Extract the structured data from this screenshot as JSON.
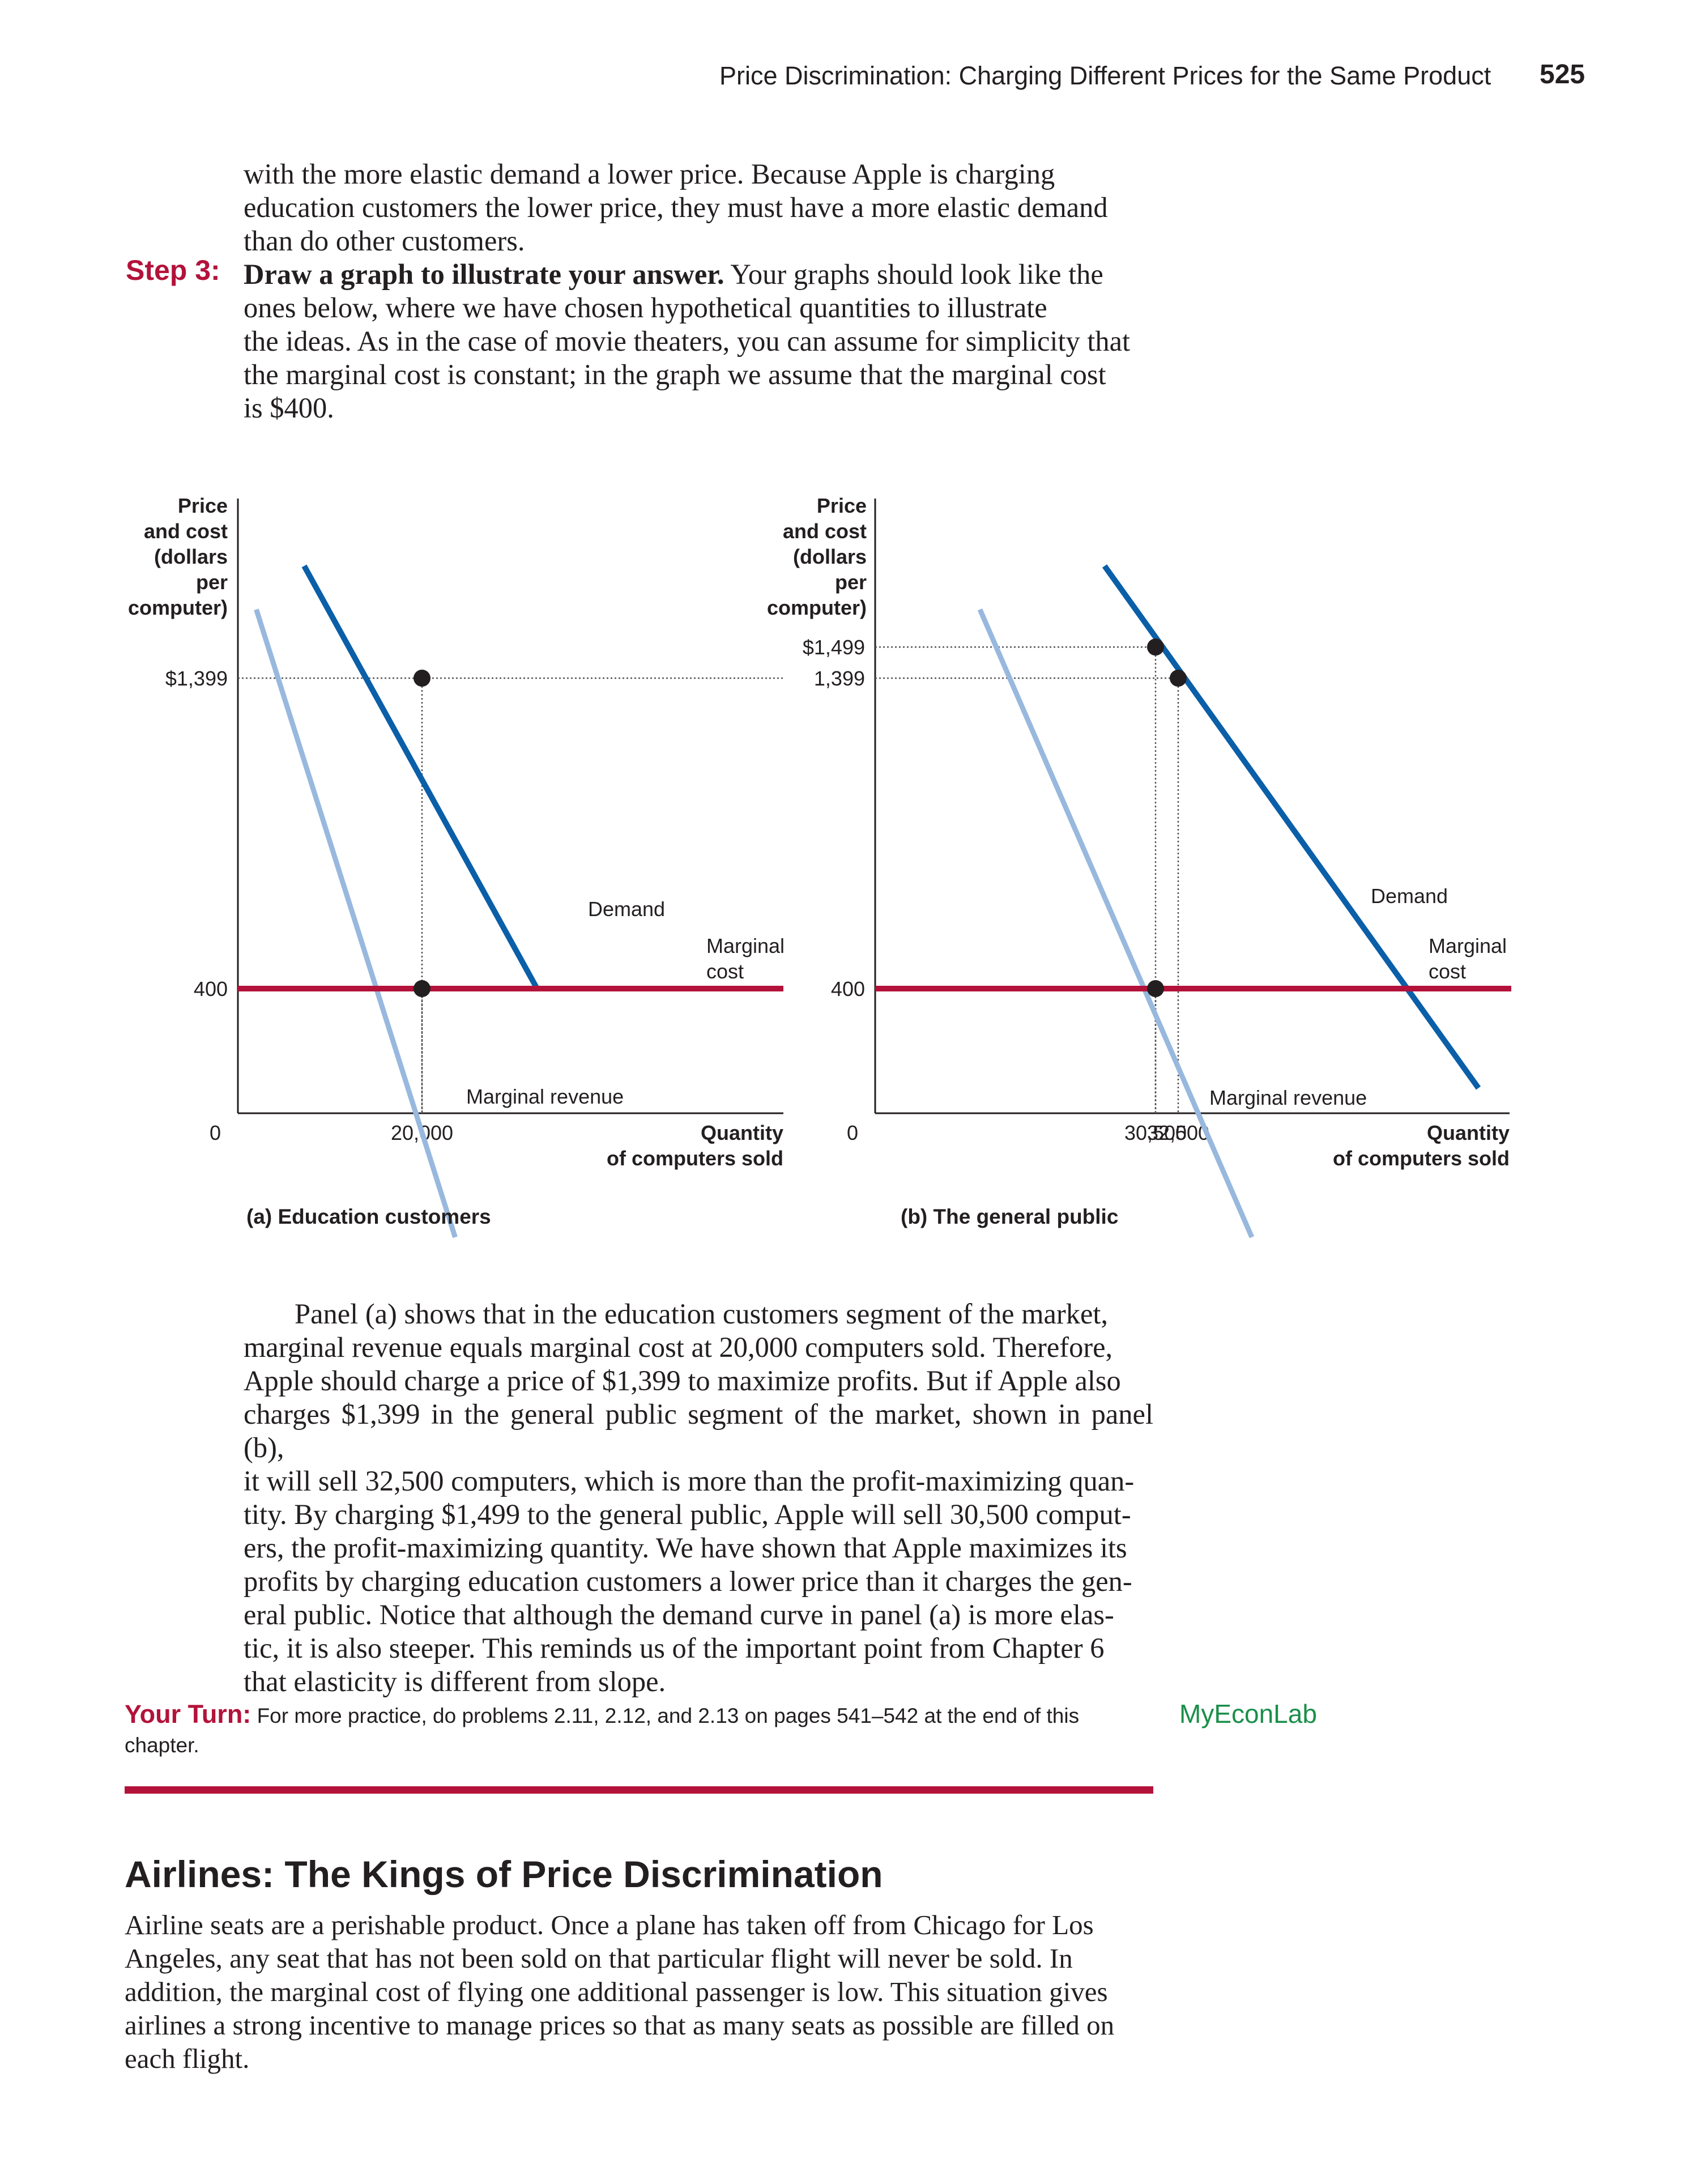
{
  "header": {
    "running_title": "Price Discrimination: Charging Different Prices for the Same Product",
    "page_number": "525"
  },
  "intro_lines": [
    "with the more elastic demand a lower price. Because Apple is charging",
    "education customers the lower price, they must have a more elastic demand",
    "than do other customers."
  ],
  "step3": {
    "label": "Step 3:",
    "bold_lead": "Draw a graph to illustrate your answer.",
    "line1_rest": " Your graphs should look like the",
    "lines": [
      "ones below, where we have chosen hypothetical quantities to illustrate",
      "the ideas. As in the case of movie theaters, you can assume for simplicity that",
      "the marginal cost is constant; in the graph we assume that the marginal cost",
      "is $400."
    ]
  },
  "colors": {
    "demand": "#0a5fa8",
    "marginal_revenue": "#98b8de",
    "marginal_cost": "#b3123a",
    "accent_red": "#b3123a",
    "myeconlab_green": "#1a8f4a"
  },
  "chart_data": [
    {
      "type": "line",
      "caption": "(a) Education customers",
      "ylabel": [
        "Price",
        "and cost",
        "(dollars",
        "per",
        "computer)"
      ],
      "xlabel": [
        "Quantity",
        "of computers sold"
      ],
      "origin_label": "0",
      "y_ticks": [
        {
          "value": 1399,
          "label": "$1,399"
        },
        {
          "value": 400,
          "label": "400"
        }
      ],
      "x_ticks": [
        {
          "value": 20000,
          "label": "20,000"
        }
      ],
      "series": [
        {
          "name": "Demand",
          "points": [
            [
              7200,
              1760
            ],
            [
              32500,
              400
            ]
          ]
        },
        {
          "name": "Marginal revenue",
          "points": [
            [
              2000,
              1620
            ],
            [
              23600,
              -400
            ]
          ]
        },
        {
          "name": "Marginal cost",
          "points": [
            [
              0,
              400
            ],
            [
              60000,
              400
            ]
          ]
        }
      ],
      "highlighted_points": [
        [
          20000,
          1399
        ],
        [
          20000,
          400
        ]
      ]
    },
    {
      "type": "line",
      "caption": "(b) The general public",
      "ylabel": [
        "Price",
        "and cost",
        "(dollars",
        "per",
        "computer)"
      ],
      "xlabel": [
        "Quantity",
        "of computers sold"
      ],
      "origin_label": "0",
      "y_ticks": [
        {
          "value": 1499,
          "label": "$1,499"
        },
        {
          "value": 1399,
          "label": "1,399"
        },
        {
          "value": 400,
          "label": "400"
        }
      ],
      "x_ticks": [
        {
          "value": 30500,
          "label": "30,500"
        },
        {
          "value": 32500,
          "label": "32,500"
        }
      ],
      "series": [
        {
          "name": "Demand",
          "points": [
            [
              26000,
              1760
            ],
            [
              59000,
              80
            ]
          ]
        },
        {
          "name": "Marginal revenue",
          "points": [
            [
              15000,
              1620
            ],
            [
              39000,
              -400
            ]
          ]
        },
        {
          "name": "Marginal cost",
          "points": [
            [
              0,
              400
            ],
            [
              79000,
              400
            ]
          ]
        }
      ],
      "highlighted_points": [
        [
          30500,
          1499
        ],
        [
          32500,
          1399
        ],
        [
          30500,
          400
        ]
      ]
    }
  ],
  "chart_labels": {
    "a": {
      "demand": "Demand",
      "mr": "Marginal revenue",
      "mc": [
        "Marginal",
        "cost"
      ]
    },
    "b": {
      "demand": "Demand",
      "mr": "Marginal revenue",
      "mc": [
        "Marginal",
        "cost"
      ]
    }
  },
  "discussion_lines": [
    "Panel (a) shows that in the education customers segment of the market,",
    "marginal revenue equals marginal cost at 20,000 computers sold. Therefore,",
    "Apple should charge a price of $1,399 to maximize profits. But if Apple also",
    "charges $1,399 in the general public segment of the market, shown in panel (b),",
    "it will sell 32,500 computers, which is more than the profit-maximizing quan-",
    "tity. By charging $1,499 to the general public, Apple will sell 30,500 comput-",
    "ers, the profit-maximizing quantity. We have shown that Apple maximizes its",
    "profits by charging education customers a lower price than it charges the gen-",
    "eral public. Notice that although the demand curve in panel (a) is more elas-",
    "tic, it is also steeper. This reminds us of the important point from Chapter 6",
    "that elasticity is different from slope."
  ],
  "your_turn": {
    "label": "Your Turn:",
    "text": " For more practice, do problems 2.11, 2.12, and 2.13 on pages 541–542 at the end of this",
    "text2": "chapter."
  },
  "myeconlab": {
    "part1": "MyEcon",
    "part2": "Lab"
  },
  "section": {
    "heading": "Airlines: The Kings of Price Discrimination",
    "lines": [
      "Airline seats are a perishable product. Once a plane has taken off from Chicago for Los",
      "Angeles, any seat that has not been sold on that particular flight will never be sold. In",
      "addition, the marginal cost of flying one additional passenger is low. This situation gives",
      "airlines a strong incentive to manage prices so that as many seats as possible are filled on",
      "each flight."
    ]
  }
}
